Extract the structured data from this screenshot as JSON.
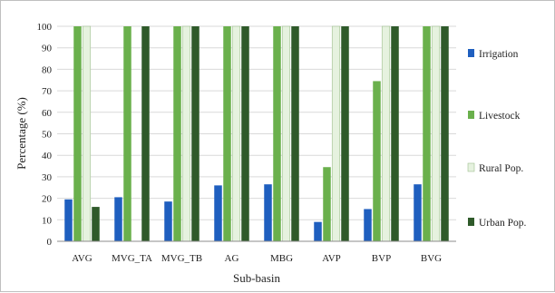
{
  "chart_data": {
    "type": "bar",
    "title": "",
    "xlabel": "Sub-basin",
    "ylabel": "Percentage (%)",
    "ylim": [
      0,
      100
    ],
    "yticks": [
      0,
      10,
      20,
      30,
      40,
      50,
      60,
      70,
      80,
      90,
      100
    ],
    "grid": true,
    "legend_position": "right",
    "categories": [
      "AVG",
      "MVG_TA",
      "MVG_TB",
      "AG",
      "MBG",
      "AVP",
      "BVP",
      "BVG"
    ],
    "series": [
      {
        "name": "Irrigation",
        "color": "#1f5fbf",
        "values": [
          19.5,
          20.5,
          18.5,
          26,
          26.5,
          9,
          15,
          26.5
        ]
      },
      {
        "name": "Livestock",
        "color": "#6ab04c",
        "values": [
          100,
          100,
          100,
          100,
          100,
          34.5,
          74.5,
          100
        ]
      },
      {
        "name": "Rural Pop.",
        "color": "#e6f2df",
        "values": [
          100,
          0,
          100,
          100,
          100,
          100,
          100,
          100
        ]
      },
      {
        "name": "Urban Pop.",
        "color": "#2f5a2a",
        "values": [
          16,
          100,
          100,
          100,
          100,
          100,
          100,
          100
        ]
      }
    ]
  }
}
